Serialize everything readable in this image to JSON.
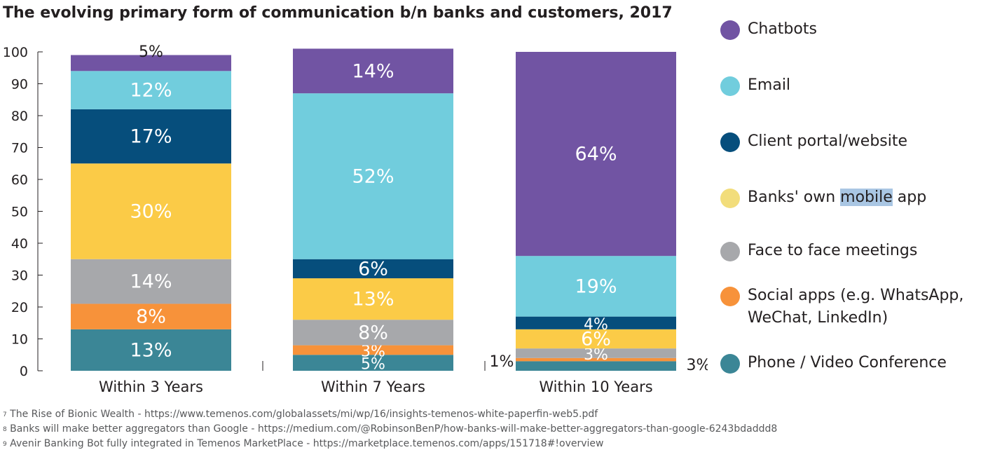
{
  "title": "The evolving primary form of communication b/n banks and customers, 2017",
  "chart_data": {
    "type": "bar",
    "stacked": true,
    "categories": [
      "Within 3 Years",
      "Within 7 Years",
      "Within 10 Years"
    ],
    "ylim": [
      0,
      100
    ],
    "yticks": [
      0,
      10,
      20,
      30,
      40,
      50,
      60,
      70,
      80,
      90,
      100
    ],
    "series": [
      {
        "name": "Phone / Video Conference",
        "color": "#3b8696",
        "values": [
          13,
          5,
          3
        ],
        "labels": [
          "13%",
          "5%",
          "3%"
        ]
      },
      {
        "name": "Social apps (e.g. WhatsApp, WeChat, LinkedIn)",
        "color": "#f7923a",
        "values": [
          8,
          3,
          1
        ],
        "labels": [
          "8%",
          "3%",
          "1%"
        ]
      },
      {
        "name": "Face to face meetings",
        "color": "#a7a8ab",
        "values": [
          14,
          8,
          3
        ],
        "labels": [
          "14%",
          "8%",
          "3%"
        ]
      },
      {
        "name": "Banks' own mobile app",
        "color": "#fbcb47",
        "values": [
          30,
          13,
          6
        ],
        "labels": [
          "30%",
          "13%",
          "6%"
        ]
      },
      {
        "name": "Client portal/website",
        "color": "#064e7c",
        "values": [
          17,
          6,
          4
        ],
        "labels": [
          "17%",
          "6%",
          "4%"
        ]
      },
      {
        "name": "Email",
        "color": "#71cddd",
        "values": [
          12,
          52,
          19
        ],
        "labels": [
          "12%",
          "52%",
          "19%"
        ]
      },
      {
        "name": "Chatbots",
        "color": "#7154a3",
        "values": [
          5,
          14,
          64
        ],
        "labels": [
          "5%",
          "14%",
          "64%"
        ]
      }
    ],
    "legend_position": "right"
  },
  "legend": [
    {
      "label": "Chatbots",
      "color": "#7154a3"
    },
    {
      "label": "Email",
      "color": "#71cddd"
    },
    {
      "label": "Client portal/website",
      "color": "#064e7c"
    },
    {
      "label_before": "Banks' own ",
      "label_highlight": "mobile",
      "label_after": " app",
      "color": "#f2dd7b"
    },
    {
      "label": "Face to face meetings",
      "color": "#a7a8ab"
    },
    {
      "label": "Social apps (e.g. WhatsApp,\nWeChat, LinkedIn)",
      "color": "#f7923a"
    },
    {
      "label": "Phone / Video Conference",
      "color": "#3b8696"
    }
  ],
  "footnotes": [
    {
      "num": "7",
      "text": " The Rise of Bionic Wealth - https://www.temenos.com/globalassets/mi/wp/16/insights-temenos-white-paperfin-web5.pdf"
    },
    {
      "num": "8",
      "text": " Banks will make better aggregators than Google - https://medium.com/@RobinsonBenP/how-banks-will-make-better-aggregators-than-google-6243bdaddd8"
    },
    {
      "num": "9",
      "text": " Avenir Banking Bot fully integrated in Temenos MarketPlace - https://marketplace.temenos.com/apps/151718#!overview"
    }
  ]
}
